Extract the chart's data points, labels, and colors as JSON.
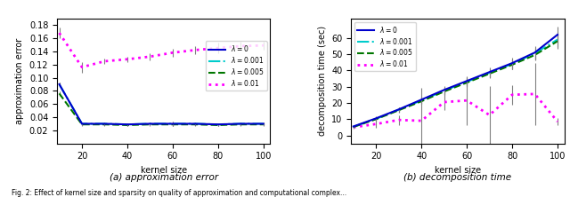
{
  "x": [
    10,
    20,
    30,
    40,
    50,
    60,
    70,
    80,
    90,
    100
  ],
  "approx_lambda0": [
    0.09,
    0.03,
    0.03,
    0.029,
    0.03,
    0.03,
    0.03,
    0.029,
    0.03,
    0.03
  ],
  "approx_lambda0_err": [
    0.003,
    0.002,
    0.002,
    0.002,
    0.002,
    0.003,
    0.002,
    0.002,
    0.002,
    0.002
  ],
  "approx_lambda001": [
    0.09,
    0.03,
    0.03,
    0.029,
    0.03,
    0.03,
    0.03,
    0.029,
    0.03,
    0.03
  ],
  "approx_lambda001_err": [
    0.003,
    0.002,
    0.002,
    0.002,
    0.002,
    0.003,
    0.002,
    0.002,
    0.002,
    0.002
  ],
  "approx_lambda0005": [
    0.076,
    0.029,
    0.029,
    0.028,
    0.029,
    0.029,
    0.029,
    0.028,
    0.029,
    0.029
  ],
  "approx_lambda0005_err": [
    0.003,
    0.002,
    0.002,
    0.002,
    0.002,
    0.002,
    0.002,
    0.002,
    0.002,
    0.002
  ],
  "approx_lambda01": [
    0.168,
    0.116,
    0.125,
    0.128,
    0.132,
    0.138,
    0.142,
    0.145,
    0.148,
    0.149
  ],
  "approx_lambda01_err": [
    0.008,
    0.008,
    0.004,
    0.004,
    0.005,
    0.006,
    0.006,
    0.008,
    0.006,
    0.006
  ],
  "decomp_lambda0": [
    5.5,
    10.5,
    16.0,
    22.0,
    28.0,
    33.5,
    39.0,
    44.5,
    51.0,
    62.0
  ],
  "decomp_lambda0_err": [
    0.5,
    1.5,
    1.5,
    2.0,
    2.5,
    2.5,
    3.0,
    3.5,
    4.0,
    5.0
  ],
  "decomp_lambda001": [
    5.3,
    10.2,
    15.8,
    21.5,
    27.5,
    33.0,
    38.5,
    44.0,
    50.5,
    59.0
  ],
  "decomp_lambda001_err": [
    0.5,
    1.0,
    1.5,
    2.0,
    2.0,
    2.5,
    2.5,
    3.0,
    3.5,
    4.5
  ],
  "decomp_lambda0005": [
    5.2,
    10.0,
    15.5,
    21.0,
    27.0,
    32.5,
    38.0,
    43.5,
    49.5,
    58.0
  ],
  "decomp_lambda0005_err": [
    0.5,
    1.0,
    1.5,
    2.0,
    2.0,
    2.5,
    2.5,
    3.0,
    3.5,
    4.5
  ],
  "decomp_lambda01": [
    5.0,
    7.0,
    9.5,
    9.0,
    20.5,
    21.5,
    12.5,
    25.0,
    25.5,
    8.5
  ],
  "decomp_lambda01_err": [
    1.0,
    2.5,
    3.0,
    20.5,
    5.0,
    15.0,
    18.0,
    6.0,
    19.0,
    2.0
  ],
  "approx_xticks": [
    20,
    40,
    60,
    80,
    100
  ],
  "approx_ylim": [
    0.0,
    0.19
  ],
  "approx_yticks": [
    0.02,
    0.04,
    0.06,
    0.08,
    0.1,
    0.12,
    0.14,
    0.16,
    0.18
  ],
  "decomp_xticks": [
    20,
    40,
    60,
    80,
    100
  ],
  "decomp_ylim": [
    -5,
    72
  ],
  "decomp_yticks": [
    0,
    10,
    20,
    30,
    40,
    50,
    60
  ],
  "color_lambda0": "#0000cc",
  "color_lambda001": "#00cccc",
  "color_lambda0005": "#007700",
  "color_lambda01": "#ff00ff",
  "xlabel": "kernel size",
  "ylabel_approx": "approximation error",
  "ylabel_decomp": "decomposition time (sec)",
  "legend_labels": [
    "$\\lambda = 0$",
    "$\\lambda = 0.001$",
    "$\\lambda = 0.005$",
    "$\\lambda = 0.01$"
  ],
  "caption_a": "(a) approximation error",
  "caption_b": "(b) decomposition time",
  "figure_caption": "Fig. 2: Effect of kernel size and sparsity on quality of approximation and computational complex..."
}
